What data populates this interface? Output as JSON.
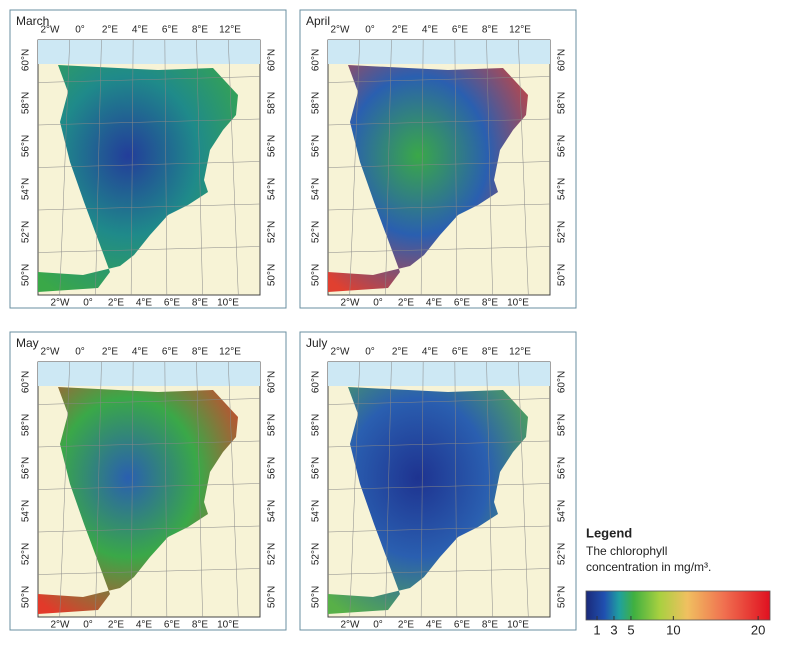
{
  "panels": [
    {
      "title": "March",
      "top_labels": [
        "2°W",
        "0°",
        "2°E",
        "4°E",
        "6°E",
        "8°E",
        "12°E"
      ],
      "bottom_labels": [
        "2°W",
        "0°",
        "2°E",
        "4°E",
        "6°E",
        "8°E",
        "10°E"
      ],
      "left_labels": [
        "60°N",
        "58°N",
        "56°N",
        "54°N",
        "52°N",
        "50°N"
      ],
      "right_labels": [
        "60°N",
        "58°N",
        "56°N",
        "54°N",
        "52°N",
        "50°N"
      ]
    },
    {
      "title": "April",
      "top_labels": [
        "2°W",
        "0°",
        "2°E",
        "4°E",
        "6°E",
        "8°E",
        "12°E"
      ],
      "bottom_labels": [
        "2°W",
        "0°",
        "2°E",
        "4°E",
        "6°E",
        "8°E",
        "10°E"
      ],
      "left_labels": [
        "60°N",
        "58°N",
        "56°N",
        "54°N",
        "52°N",
        "50°N"
      ],
      "right_labels": [
        "60°N",
        "58°N",
        "56°N",
        "54°N",
        "52°N",
        "50°N"
      ]
    },
    {
      "title": "May",
      "top_labels": [
        "2°W",
        "0°",
        "2°E",
        "4°E",
        "6°E",
        "8°E",
        "12°E"
      ],
      "bottom_labels": [
        "2°W",
        "0°",
        "2°E",
        "4°E",
        "6°E",
        "8°E",
        "10°E"
      ],
      "left_labels": [
        "60°N",
        "58°N",
        "56°N",
        "54°N",
        "52°N",
        "50°N"
      ],
      "right_labels": [
        "60°N",
        "58°N",
        "56°N",
        "54°N",
        "52°N",
        "50°N"
      ]
    },
    {
      "title": "July",
      "top_labels": [
        "2°W",
        "0°",
        "2°E",
        "4°E",
        "6°E",
        "8°E",
        "12°E"
      ],
      "bottom_labels": [
        "2°W",
        "0°",
        "2°E",
        "4°E",
        "6°E",
        "8°E",
        "10°E"
      ],
      "left_labels": [
        "60°N",
        "58°N",
        "56°N",
        "54°N",
        "52°N",
        "50°N"
      ],
      "right_labels": [
        "60°N",
        "58°N",
        "56°N",
        "54°N",
        "52°N",
        "50°N"
      ]
    }
  ],
  "legend": {
    "title": "Legend",
    "text_line1": "The chlorophyll",
    "text_line2": "concentration in mg/m³.",
    "lim": [
      -0.3,
      21.4
    ],
    "ticks": [
      1,
      3,
      5,
      10,
      20
    ]
  }
}
